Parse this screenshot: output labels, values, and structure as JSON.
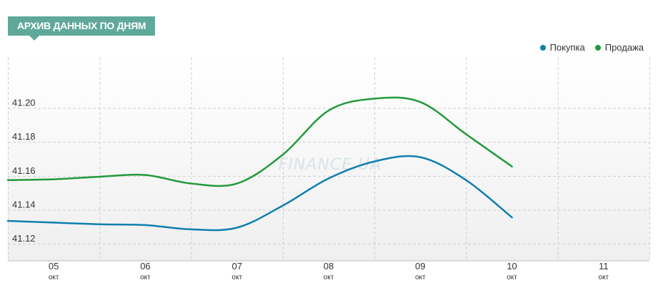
{
  "header": {
    "title": "АРХИВ ДАННЫХ ПО ДНЯМ"
  },
  "watermark": "FINANCE.UA",
  "colors": {
    "buy": "#0f7fae",
    "sell": "#219a3b",
    "badge": "#5fa89a",
    "grid": "#cfcfcf"
  },
  "chart_data": {
    "type": "line",
    "title": "АРХИВ ДАННЫХ ПО ДНЯМ",
    "x_ticks": [
      {
        "day": "05",
        "month": "окт"
      },
      {
        "day": "06",
        "month": "окт"
      },
      {
        "day": "07",
        "month": "окт"
      },
      {
        "day": "08",
        "month": "окт"
      },
      {
        "day": "09",
        "month": "окт"
      },
      {
        "day": "10",
        "month": "окт"
      },
      {
        "day": "11",
        "month": "окт"
      }
    ],
    "y_ticks": [
      "41.12",
      "41.14",
      "41.16",
      "41.18",
      "41.20"
    ],
    "ylim": [
      41.11,
      41.23
    ],
    "xlim": [
      5,
      12
    ],
    "grid": true,
    "legend_position": "top-right",
    "series": [
      {
        "name": "Покупка",
        "color": "#0f7fae",
        "points": [
          [
            5.0,
            41.1335
          ],
          [
            5.5,
            41.1325
          ],
          [
            6.0,
            41.1315
          ],
          [
            6.5,
            41.131
          ],
          [
            7.0,
            41.1285
          ],
          [
            7.5,
            41.1295
          ],
          [
            8.0,
            41.1425
          ],
          [
            8.5,
            41.1585
          ],
          [
            9.0,
            41.1685
          ],
          [
            9.5,
            41.171
          ],
          [
            10.0,
            41.1575
          ],
          [
            10.5,
            41.1355
          ]
        ]
      },
      {
        "name": "Продажа",
        "color": "#219a3b",
        "points": [
          [
            5.0,
            41.1575
          ],
          [
            5.5,
            41.158
          ],
          [
            6.0,
            41.1595
          ],
          [
            6.5,
            41.1605
          ],
          [
            7.0,
            41.1555
          ],
          [
            7.5,
            41.1555
          ],
          [
            8.0,
            41.1725
          ],
          [
            8.5,
            41.1985
          ],
          [
            9.0,
            41.2055
          ],
          [
            9.5,
            41.2035
          ],
          [
            10.0,
            41.1845
          ],
          [
            10.5,
            41.1655
          ]
        ]
      }
    ]
  }
}
